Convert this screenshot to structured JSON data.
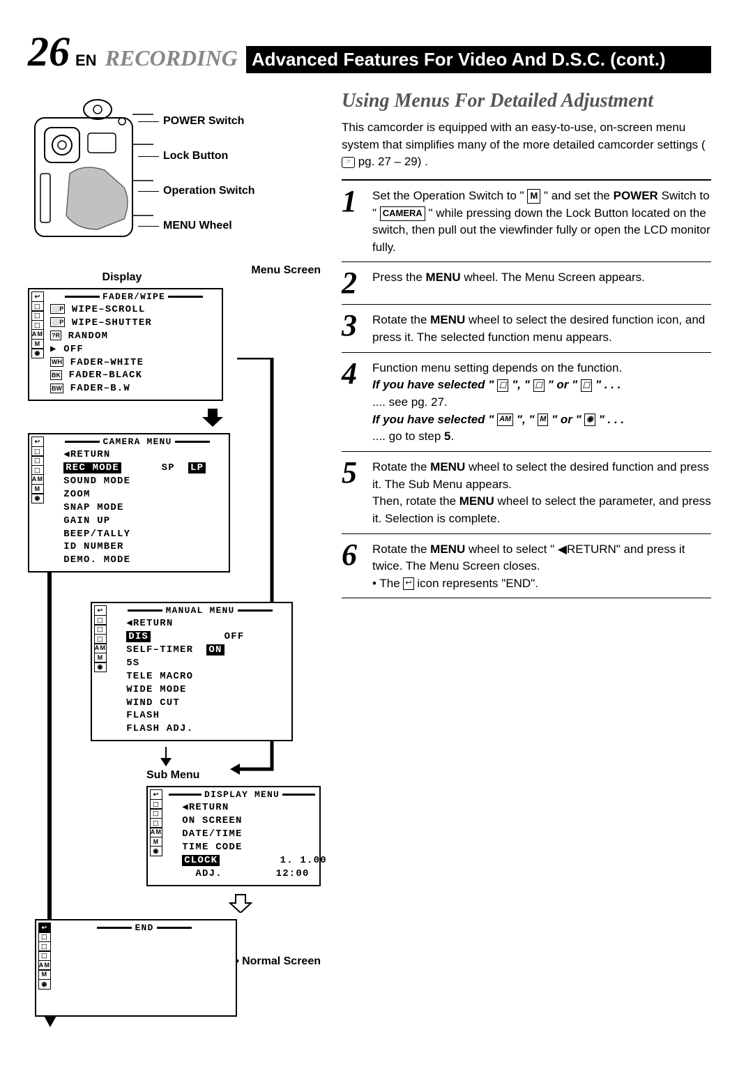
{
  "header": {
    "page_num": "26",
    "lang": "EN",
    "recording": "RECORDING",
    "title_rest": "Advanced Features For Video And D.S.C. (cont.)"
  },
  "cam_labels": [
    "POWER Switch",
    "Lock Button",
    "Operation Switch",
    "MENU Wheel"
  ],
  "display_label": "Display",
  "menu_screen_label": "Menu Screen",
  "sub_menu_label": "Sub Menu",
  "normal_screen_label": "Normal Screen",
  "screens": {
    "fader": {
      "title": "FADER/WIPE",
      "lines": [
        {
          "icon": "⬜P",
          "text": "WIPE–SCROLL"
        },
        {
          "icon": "⬜P",
          "text": "WIPE–SHUTTER"
        },
        {
          "icon": "?R",
          "text": "RANDOM"
        },
        {
          "icon": "▶",
          "text": "OFF",
          "cursor": true
        },
        {
          "icon": "WH",
          "text": "FADER–WHITE"
        },
        {
          "icon": "BK",
          "text": "FADER–BLACK"
        },
        {
          "icon": "BW",
          "text": "FADER–B.W"
        }
      ]
    },
    "camera": {
      "title": "CAMERA MENU",
      "lines": [
        {
          "text": "◀RETURN"
        },
        {
          "text_inv": "REC MODE",
          "right": "SP",
          "right2": "LP",
          "right2_inv": true
        },
        {
          "text": "SOUND MODE"
        },
        {
          "text": "ZOOM"
        },
        {
          "text": "SNAP MODE"
        },
        {
          "text": "GAIN UP"
        },
        {
          "text": "BEEP/TALLY"
        },
        {
          "text": "ID NUMBER"
        },
        {
          "text": "DEMO. MODE"
        }
      ]
    },
    "manual": {
      "title": "MANUAL MENU",
      "lines": [
        {
          "text": "◀RETURN"
        },
        {
          "text_inv": "DIS",
          "right": "OFF"
        },
        {
          "text": "SELF–TIMER",
          "right_inv": "ON"
        },
        {
          "text": "5S"
        },
        {
          "text": "TELE MACRO"
        },
        {
          "text": "WIDE MODE"
        },
        {
          "text": "WIND CUT"
        },
        {
          "text": "FLASH"
        },
        {
          "text": "FLASH ADJ."
        }
      ]
    },
    "display": {
      "title": "DISPLAY MENU",
      "lines": [
        {
          "text": "◀RETURN"
        },
        {
          "text": "ON SCREEN"
        },
        {
          "text": "DATE/TIME"
        },
        {
          "text": "TIME CODE"
        },
        {
          "text_inv": "CLOCK",
          "right": "1. 1.00"
        },
        {
          "text": "  ADJ.",
          "right": "12:00"
        }
      ]
    },
    "end": {
      "title": "END"
    }
  },
  "right": {
    "section_title": "Using Menus For Detailed Adjustment",
    "intro_a": "This camcorder is equipped with an easy-to-use, on-screen menu system that simplifies many of the more detailed camcorder settings (",
    "intro_b": " pg. 27 – 29) .",
    "steps": [
      {
        "n": "1",
        "html": "Set the Operation Switch to \" <span class='boxed'>M</span> \" and set the <span class='bold'>POWER</span> Switch to \" <span class='boxed'>CAMERA</span> \" while pressing down the Lock Button located on the switch, then pull out the viewfinder fully or open the LCD monitor fully."
      },
      {
        "n": "2",
        "html": "Press the <span class='bold'>MENU</span> wheel. The Menu Screen appears."
      },
      {
        "n": "3",
        "html": "Rotate the <span class='bold'>MENU</span> wheel to select the desired function icon, and press it. The selected function menu appears."
      },
      {
        "n": "4",
        "html": "Function menu setting depends on the function.<br><span class='ital'>If you have selected \" <span class='boxed-sm'>⬚</span> \", \" <span class='boxed-sm'>⬚</span> \" or \" <span class='boxed-sm'>⬚</span> \" . . .</span><br>.... see pg. 27.<br><span class='ital'>If you have selected \" <span class='boxed-sm'>AM</span> \", \" <span class='boxed-sm'>M</span> \" or \" <span class='boxed-sm'>◉</span> \" . . .</span><br>.... go to step <span class='bold'>5</span>."
      },
      {
        "n": "5",
        "html": "Rotate the <span class='bold'>MENU</span> wheel to select the desired function and press it. The Sub Menu appears.<br>Then, rotate the <span class='bold'>MENU</span> wheel to select the parameter, and press it. Selection is complete."
      },
      {
        "n": "6",
        "html": "Rotate the <span class='bold'>MENU</span> wheel to select \" ◀RETURN\" and press it twice. The Menu Screen closes.<br>• The <span class='boxed-sm'>↩</span> icon represents \"END\"."
      }
    ]
  },
  "colors": {
    "gray": "#888888",
    "black": "#000000"
  }
}
